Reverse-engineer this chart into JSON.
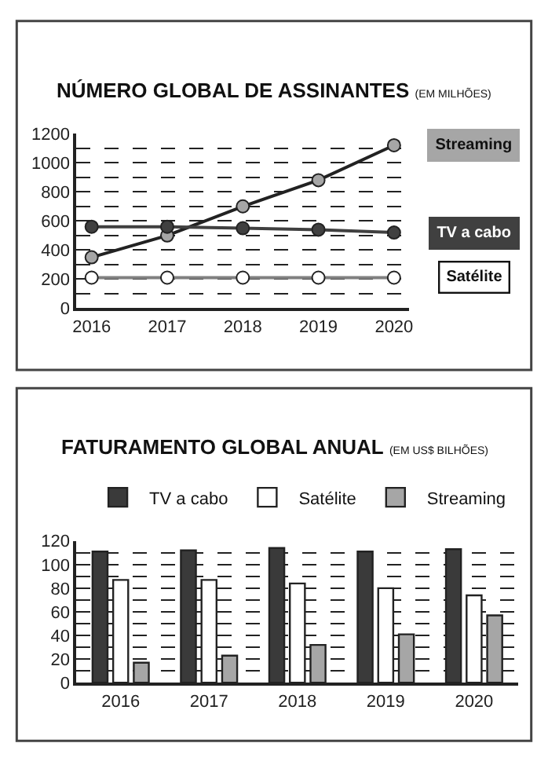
{
  "chart_data": [
    {
      "type": "line",
      "title": "NÚMERO GLOBAL DE ASSINANTES",
      "subtitle": "(EM MILHÕES)",
      "categories": [
        "2016",
        "2017",
        "2018",
        "2019",
        "2020"
      ],
      "series": [
        {
          "name": "Streaming",
          "color": "#a6a6a6",
          "values": [
            350,
            500,
            700,
            880,
            1120
          ]
        },
        {
          "name": "TV a cabo",
          "color": "#404040",
          "values": [
            560,
            560,
            550,
            540,
            520
          ]
        },
        {
          "name": "Satélite",
          "color": "#ffffff",
          "values": [
            210,
            210,
            210,
            210,
            210
          ]
        }
      ],
      "ylim": [
        0,
        1200
      ],
      "yticks": [
        0,
        {
          "value": 100,
          "label": null
        },
        200,
        {
          "value": 300,
          "label": null
        },
        400,
        {
          "value": 500,
          "label": null
        },
        600,
        {
          "value": 700,
          "label": null
        },
        800,
        {
          "value": 900,
          "label": null
        },
        1000,
        {
          "value": 1100,
          "label": null
        },
        1200
      ],
      "grid": "y",
      "legend": "right",
      "marker": "circle",
      "line_style": "solid"
    },
    {
      "type": "bar",
      "title": "FATURAMENTO GLOBAL ANUAL",
      "subtitle": "(EM US$ BILHÕES)",
      "categories": [
        "2016",
        "2017",
        "2018",
        "2019",
        "2020"
      ],
      "series": [
        {
          "name": "TV a cabo",
          "color": "#3a3a3a",
          "values": [
            111,
            112,
            114,
            111,
            113
          ]
        },
        {
          "name": "Satélite",
          "color": "#ffffff",
          "values": [
            87,
            87,
            84,
            80,
            74
          ]
        },
        {
          "name": "Streaming",
          "color": "#a6a6a6",
          "values": [
            17,
            23,
            32,
            41,
            57
          ]
        }
      ],
      "ylim": [
        0,
        120
      ],
      "yticks": [
        0,
        {
          "value": 10,
          "label": null
        },
        20,
        {
          "value": 30,
          "label": null
        },
        40,
        {
          "value": 50,
          "label": null
        },
        60,
        {
          "value": 70,
          "label": null
        },
        80,
        {
          "value": 90,
          "label": null
        },
        100,
        {
          "value": 110,
          "label": null
        },
        120
      ],
      "grid": "y",
      "legend": "top"
    }
  ]
}
